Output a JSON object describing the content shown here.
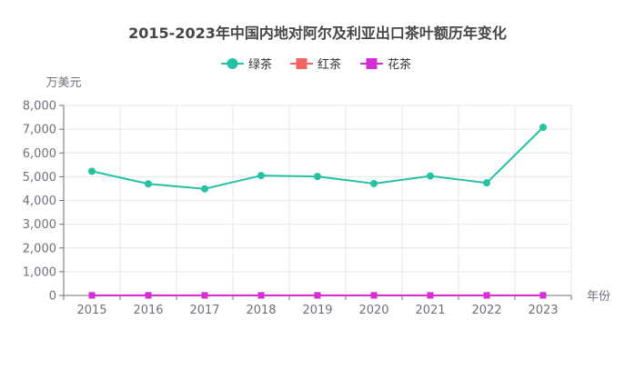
{
  "chart_data": {
    "type": "line",
    "title": "2015-2023年中国内地对阿尔及利亚出口茶叶额历年变化",
    "xlabel": "年份",
    "ylabel": "万美元",
    "categories": [
      "2015",
      "2016",
      "2017",
      "2018",
      "2019",
      "2020",
      "2021",
      "2022",
      "2023"
    ],
    "ylim": [
      0,
      8000
    ],
    "yticks": [
      0,
      1000,
      2000,
      3000,
      4000,
      5000,
      6000,
      7000,
      8000
    ],
    "ytick_labels": [
      "0",
      "1,000",
      "2,000",
      "3,000",
      "4,000",
      "5,000",
      "6,000",
      "7,000",
      "8,000"
    ],
    "legend_position": "top-center",
    "grid": true,
    "series": [
      {
        "name": "绿茶",
        "color": "#26c0a2",
        "marker": "circle",
        "values": [
          5230,
          4700,
          4490,
          5050,
          5010,
          4710,
          5030,
          4740,
          7080
        ]
      },
      {
        "name": "红茶",
        "color": "#f26464",
        "marker": "square",
        "values": [
          0,
          0,
          0,
          0,
          0,
          0,
          0,
          0,
          0
        ]
      },
      {
        "name": "花茶",
        "color": "#d42fd6",
        "marker": "square",
        "values": [
          5,
          5,
          5,
          5,
          5,
          5,
          5,
          5,
          5
        ]
      }
    ]
  }
}
